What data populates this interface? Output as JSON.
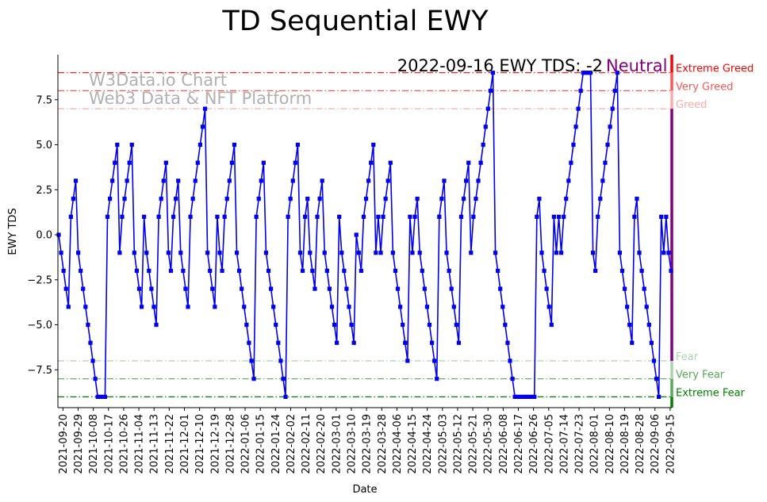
{
  "chart_data": {
    "type": "line",
    "title": "TD Sequential EWY",
    "xlabel": "Date",
    "ylabel": "EWY TDS",
    "ylim": [
      -9.6,
      10.0
    ],
    "yticks": [
      -7.5,
      -5.0,
      -2.5,
      0.0,
      2.5,
      5.0,
      7.5
    ],
    "ytick_labels": [
      "−7.5",
      "−5.0",
      "−2.5",
      "0.0",
      "2.5",
      "5.0",
      "7.5"
    ],
    "x_date_range": [
      "2021-09-17",
      "2022-09-16"
    ],
    "xtick_labels": [
      "2021-09-20",
      "2021-09-29",
      "2021-10-08",
      "2021-10-17",
      "2021-10-26",
      "2021-11-04",
      "2021-11-13",
      "2021-11-22",
      "2021-12-01",
      "2021-12-10",
      "2021-12-19",
      "2021-12-28",
      "2022-01-06",
      "2022-01-15",
      "2022-01-24",
      "2022-02-02",
      "2022-02-11",
      "2022-02-20",
      "2022-03-01",
      "2022-03-10",
      "2022-03-19",
      "2022-03-28",
      "2022-04-06",
      "2022-04-15",
      "2022-04-24",
      "2022-05-03",
      "2022-05-12",
      "2022-05-21",
      "2022-05-30",
      "2022-06-08",
      "2022-06-17",
      "2022-06-26",
      "2022-07-05",
      "2022-07-14",
      "2022-07-23",
      "2022-08-01",
      "2022-08-10",
      "2022-08-19",
      "2022-08-28",
      "2022-09-06",
      "2022-09-15"
    ],
    "series": [
      {
        "name": "EWY TDS",
        "color": "#0000ee",
        "values": [
          0,
          -1,
          -2,
          -3,
          -4,
          1,
          2,
          3,
          -1,
          -2,
          -3,
          -4,
          -5,
          -6,
          -7,
          -8,
          -9,
          -9,
          -9,
          -9,
          1,
          2,
          3,
          4,
          5,
          -1,
          1,
          2,
          3,
          4,
          5,
          -1,
          -2,
          -3,
          -4,
          1,
          -1,
          -2,
          -3,
          -4,
          -5,
          1,
          2,
          3,
          4,
          -1,
          -2,
          1,
          2,
          3,
          -1,
          -2,
          -3,
          -4,
          1,
          2,
          3,
          4,
          5,
          6,
          7,
          -1,
          -2,
          -3,
          -4,
          1,
          -1,
          -2,
          1,
          2,
          3,
          4,
          5,
          -1,
          -2,
          -3,
          -4,
          -5,
          -6,
          -7,
          -8,
          1,
          2,
          3,
          4,
          -1,
          -2,
          -3,
          -4,
          -5,
          -6,
          -7,
          -8,
          -9,
          1,
          2,
          3,
          4,
          5,
          -1,
          -2,
          1,
          2,
          -1,
          -2,
          -3,
          1,
          2,
          3,
          -1,
          -2,
          -3,
          -4,
          -5,
          -6,
          1,
          -1,
          -2,
          -3,
          -4,
          -5,
          -6,
          0,
          -1,
          -2,
          1,
          2,
          3,
          4,
          5,
          -1,
          1,
          -1,
          1,
          2,
          3,
          4,
          -1,
          -2,
          -3,
          -4,
          -5,
          -6,
          -7,
          1,
          -1,
          1,
          2,
          -1,
          -2,
          -3,
          -4,
          -5,
          -6,
          -7,
          -8,
          1,
          2,
          3,
          -1,
          -2,
          -3,
          -4,
          -5,
          -6,
          1,
          2,
          3,
          4,
          -1,
          1,
          2,
          3,
          4,
          5,
          6,
          7,
          8,
          9,
          -1,
          -2,
          -3,
          -4,
          -5,
          -6,
          -7,
          -8,
          -9,
          -9,
          -9,
          -9,
          -9,
          -9,
          -9,
          -9,
          -9,
          1,
          2,
          -1,
          -2,
          -3,
          -4,
          -5,
          1,
          -1,
          1,
          -1,
          1,
          2,
          3,
          4,
          5,
          6,
          7,
          8,
          9,
          9,
          9,
          9,
          -1,
          -2,
          1,
          2,
          3,
          4,
          5,
          6,
          7,
          8,
          9,
          -1,
          -2,
          -3,
          -4,
          -5,
          -6,
          1,
          2,
          -1,
          -2,
          -3,
          -4,
          -5,
          -6,
          -7,
          -8,
          -9,
          1,
          -1,
          1,
          -1,
          -2
        ]
      }
    ],
    "zones": [
      {
        "label": "Extreme Greed",
        "y": 9,
        "color": "#ff0000"
      },
      {
        "label": "Very Greed",
        "y": 8,
        "color": "#ff5555"
      },
      {
        "label": "Greed",
        "y": 7,
        "color": "#ffaaaa"
      },
      {
        "label": "Fear",
        "y": -7,
        "color": "#aad4aa"
      },
      {
        "label": "Very Fear",
        "y": -8,
        "color": "#55aa55"
      },
      {
        "label": "Extreme Fear",
        "y": -9,
        "color": "#008000"
      }
    ],
    "annotation_status": {
      "prefix": "2022-09-16 EWY TDS: -2",
      "state": "Neutral",
      "state_color": "#800080"
    },
    "watermark": [
      "W3Data.io Chart",
      "Web3 Data & NFT Platform"
    ]
  }
}
